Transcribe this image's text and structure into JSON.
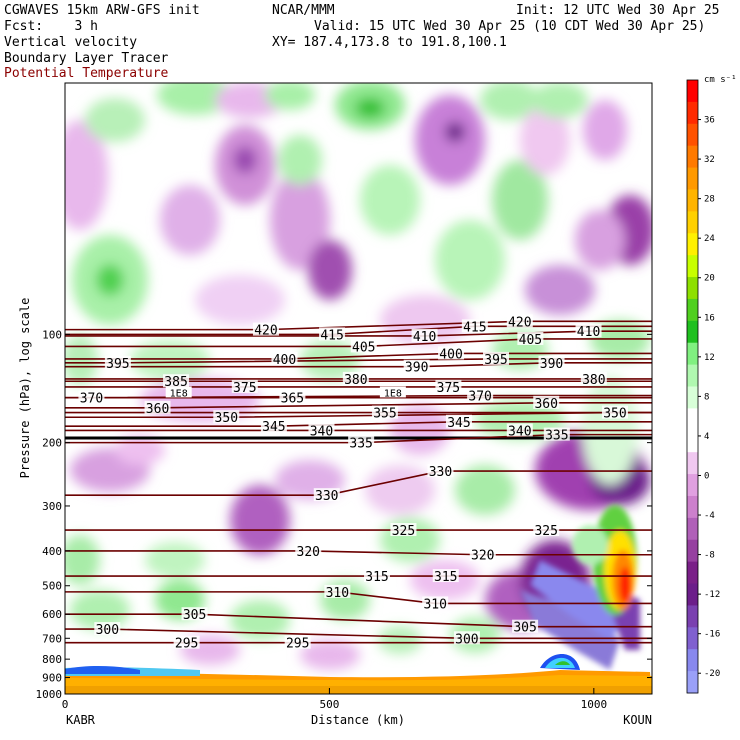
{
  "header": {
    "model": "CGWAVES 15km ARW-GFS init",
    "center": "NCAR/MMM",
    "init": "Init: 12 UTC Wed 30 Apr 25",
    "fcst": "Fcst:    3 h",
    "valid": "Valid: 15 UTC Wed 30 Apr 25 (10 CDT Wed 30 Apr 25)",
    "xy": "XY= 187.4,173.8 to 191.8,100.1",
    "fields": [
      "Vertical velocity",
      "Boundary Layer Tracer",
      "Potential Temperature"
    ]
  },
  "colors": {
    "theta_contour": "#6b0000",
    "tracer_contour": "#000000",
    "frame": "#000000"
  },
  "chart_data": {
    "type": "heatmap",
    "xlabel": "Distance (km)",
    "ylabel": "Pressure (hPa), log scale",
    "x_ticks": [
      0,
      500,
      1000
    ],
    "xlim": [
      0,
      1110
    ],
    "y_ticks": [
      100,
      200,
      300,
      400,
      500,
      600,
      700,
      800,
      900,
      1000
    ],
    "y_scale": "log",
    "ylim": [
      1000,
      20
    ],
    "x_endpoint_labels": [
      "KABR",
      "KOUN"
    ],
    "colorbar": {
      "unit": "cm s⁻¹",
      "ticks": [
        36,
        32,
        28,
        24,
        20,
        16,
        12,
        8,
        4,
        0,
        -4,
        -8,
        -12,
        -16,
        -20
      ],
      "colors": [
        "#ff0000",
        "#ff2a00",
        "#ff5200",
        "#ff7a00",
        "#ff9900",
        "#ffb400",
        "#ffd000",
        "#fff000",
        "#c8ff00",
        "#8ee000",
        "#50d020",
        "#20c020",
        "#80f080",
        "#b0f8b0",
        "#d8ffd8",
        "#ffffff",
        "#ffffff",
        "#f0c8f0",
        "#e0a0e0",
        "#cc80cc",
        "#b060b8",
        "#9640a0",
        "#7a2088",
        "#6c1e8a",
        "#7a40b0",
        "#8060d0",
        "#8888ee",
        "#9aa0f8"
      ]
    },
    "theta_labels": [
      {
        "x": 80,
        "p": 660,
        "v": "300"
      },
      {
        "x": 230,
        "p": 720,
        "v": "295"
      },
      {
        "x": 440,
        "p": 720,
        "v": "295"
      },
      {
        "x": 245,
        "p": 600,
        "v": "305"
      },
      {
        "x": 515,
        "p": 520,
        "v": "310"
      },
      {
        "x": 700,
        "p": 560,
        "v": "310"
      },
      {
        "x": 870,
        "p": 650,
        "v": "305"
      },
      {
        "x": 760,
        "p": 700,
        "v": "300"
      },
      {
        "x": 590,
        "p": 470,
        "v": "315"
      },
      {
        "x": 720,
        "p": 470,
        "v": "315"
      },
      {
        "x": 460,
        "p": 400,
        "v": "320"
      },
      {
        "x": 790,
        "p": 410,
        "v": "320"
      },
      {
        "x": 640,
        "p": 350,
        "v": "325"
      },
      {
        "x": 910,
        "p": 350,
        "v": "325"
      },
      {
        "x": 495,
        "p": 280,
        "v": "330"
      },
      {
        "x": 710,
        "p": 240,
        "v": "330"
      },
      {
        "x": 560,
        "p": 200,
        "v": "335"
      },
      {
        "x": 930,
        "p": 190,
        "v": "335"
      },
      {
        "x": 485,
        "p": 185,
        "v": "340"
      },
      {
        "x": 860,
        "p": 185,
        "v": "340"
      },
      {
        "x": 395,
        "p": 180,
        "v": "345"
      },
      {
        "x": 745,
        "p": 175,
        "v": "345"
      },
      {
        "x": 305,
        "p": 170,
        "v": "350"
      },
      {
        "x": 1040,
        "p": 165,
        "v": "350"
      },
      {
        "x": 175,
        "p": 160,
        "v": "360"
      },
      {
        "x": 605,
        "p": 165,
        "v": "355"
      },
      {
        "x": 910,
        "p": 155,
        "v": "360"
      },
      {
        "x": 430,
        "p": 150,
        "v": "365"
      },
      {
        "x": 50,
        "p": 150,
        "v": "370"
      },
      {
        "x": 785,
        "p": 148,
        "v": "370"
      },
      {
        "x": 340,
        "p": 140,
        "v": "375"
      },
      {
        "x": 725,
        "p": 140,
        "v": "375"
      },
      {
        "x": 210,
        "p": 135,
        "v": "385"
      },
      {
        "x": 550,
        "p": 133,
        "v": "380"
      },
      {
        "x": 1000,
        "p": 133,
        "v": "380"
      },
      {
        "x": 100,
        "p": 120,
        "v": "395"
      },
      {
        "x": 665,
        "p": 123,
        "v": "390"
      },
      {
        "x": 920,
        "p": 120,
        "v": "390"
      },
      {
        "x": 815,
        "p": 117,
        "v": "395"
      },
      {
        "x": 415,
        "p": 117,
        "v": "400"
      },
      {
        "x": 730,
        "p": 113,
        "v": "400"
      },
      {
        "x": 565,
        "p": 108,
        "v": "405"
      },
      {
        "x": 880,
        "p": 103,
        "v": "405"
      },
      {
        "x": 680,
        "p": 101,
        "v": "410"
      },
      {
        "x": 990,
        "p": 98,
        "v": "410"
      },
      {
        "x": 505,
        "p": 100,
        "v": "415"
      },
      {
        "x": 775,
        "p": 95,
        "v": "415"
      },
      {
        "x": 380,
        "p": 97,
        "v": "420"
      },
      {
        "x": 860,
        "p": 92,
        "v": "420"
      }
    ],
    "tracer_labels": [
      {
        "x": 215,
        "p": 145,
        "v": "1E8"
      },
      {
        "x": 620,
        "p": 145,
        "v": "1E8"
      }
    ]
  }
}
